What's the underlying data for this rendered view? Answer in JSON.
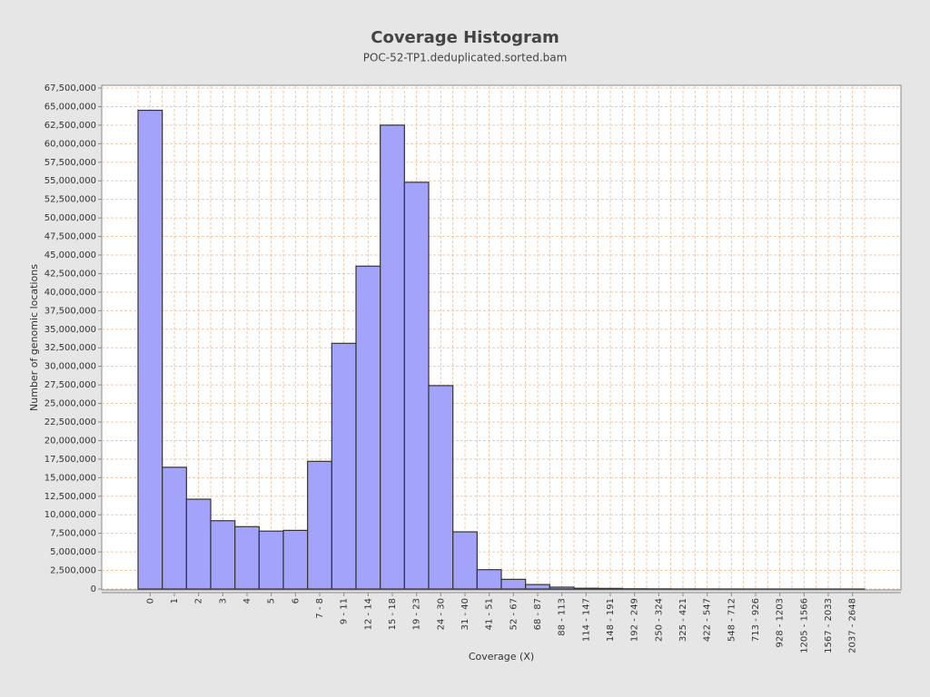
{
  "chart_data": {
    "type": "bar",
    "title": "Coverage Histogram",
    "subtitle": "POC-52-TP1.deduplicated.sorted.bam",
    "xlabel": "Coverage (X)",
    "ylabel": "Number of genomic locations",
    "categories": [
      "0",
      "1",
      "2",
      "3",
      "4",
      "5",
      "6",
      "7 - 8",
      "9 - 11",
      "12 - 14",
      "15 - 18",
      "19 - 23",
      "24 - 30",
      "31 - 40",
      "41 - 51",
      "52 - 67",
      "68 - 87",
      "88 - 113",
      "114 - 147",
      "148 - 191",
      "192 - 249",
      "250 - 324",
      "325 - 421",
      "422 - 547",
      "548 - 712",
      "713 - 926",
      "928 - 1203",
      "1205 - 1566",
      "1567 - 2033",
      "2037 - 2648"
    ],
    "values": [
      64500000,
      16400000,
      12100000,
      9200000,
      8400000,
      7800000,
      7900000,
      17200000,
      33100000,
      43500000,
      62500000,
      54800000,
      27400000,
      7700000,
      2600000,
      1300000,
      600000,
      250000,
      100000,
      80000,
      30000,
      20000,
      10000,
      8000,
      5000,
      3000,
      2000,
      1000,
      500,
      200
    ],
    "color": "#a3a3fb",
    "grid": true,
    "ylim": [
      0,
      67500000
    ],
    "yticks": [
      0,
      {
        "value": 2500000,
        "label": "2,500,000"
      },
      {
        "value": 5000000,
        "label": "5,000,000"
      },
      {
        "value": 7500000,
        "label": "7,500,000"
      },
      {
        "value": 10000000,
        "label": "10,000,000"
      },
      {
        "value": 12500000,
        "label": "12,500,000"
      },
      {
        "value": 15000000,
        "label": "15,000,000"
      },
      {
        "value": 17500000,
        "label": "17,500,000"
      },
      {
        "value": 20000000,
        "label": "20,000,000"
      },
      {
        "value": 22500000,
        "label": "22,500,000"
      },
      {
        "value": 25000000,
        "label": "25,000,000"
      },
      {
        "value": 27500000,
        "label": "27,500,000"
      },
      {
        "value": 30000000,
        "label": "30,000,000"
      },
      {
        "value": 32500000,
        "label": "32,500,000"
      },
      {
        "value": 35000000,
        "label": "35,000,000"
      },
      {
        "value": 37500000,
        "label": "37,500,000"
      },
      {
        "value": 40000000,
        "label": "40,000,000"
      },
      {
        "value": 42500000,
        "label": "42,500,000"
      },
      {
        "value": 45000000,
        "label": "45,000,000"
      },
      {
        "value": 47500000,
        "label": "47,500,000"
      },
      {
        "value": 50000000,
        "label": "50,000,000"
      },
      {
        "value": 52500000,
        "label": "52,500,000"
      },
      {
        "value": 55000000,
        "label": "55,000,000"
      },
      {
        "value": 57500000,
        "label": "57,500,000"
      },
      {
        "value": 60000000,
        "label": "60,000,000"
      },
      {
        "value": 62500000,
        "label": "62,500,000"
      },
      {
        "value": 65000000,
        "label": "65,000,000"
      },
      {
        "value": 67500000,
        "label": "67,500,000"
      }
    ]
  }
}
